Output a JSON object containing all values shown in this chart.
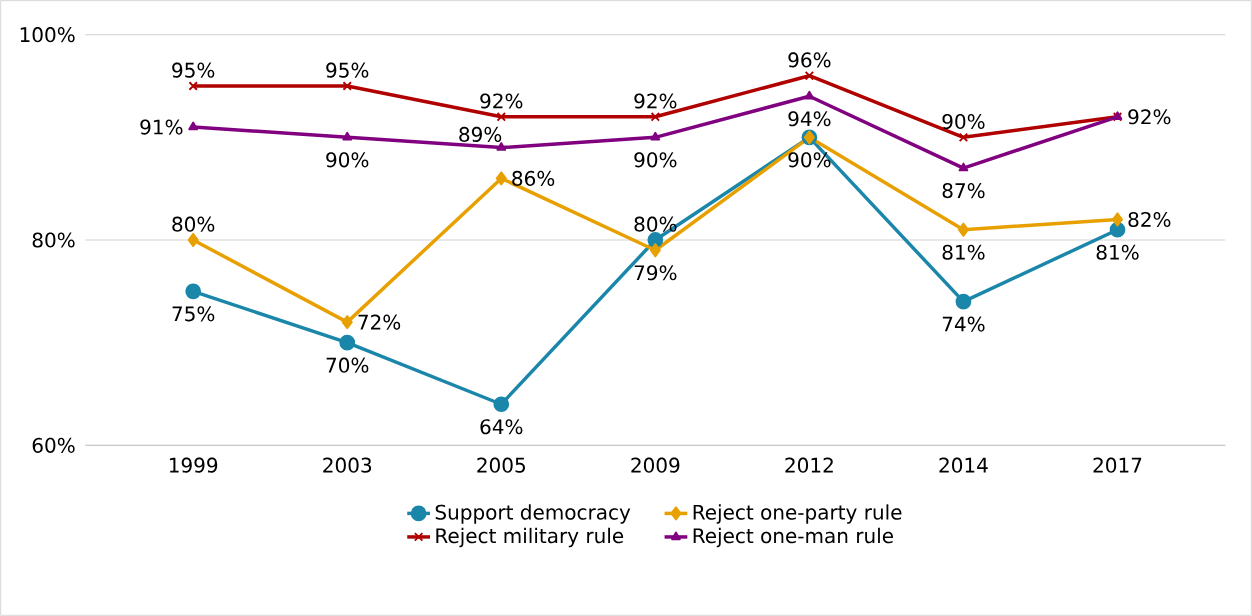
{
  "chart_data": {
    "type": "line",
    "categories": [
      "1999",
      "2003",
      "2005",
      "2009",
      "2012",
      "2014",
      "2017"
    ],
    "series": [
      {
        "name": "Support democracy",
        "color": "#1a87aa",
        "marker": "circle",
        "values": [
          75,
          70,
          64,
          80,
          90,
          74,
          81
        ],
        "value_labels": [
          "75%",
          "70%",
          "64%",
          "80%",
          null,
          "74%",
          "81%"
        ]
      },
      {
        "name": "Reject one-party rule",
        "color": "#e8a000",
        "marker": "diamond",
        "values": [
          80,
          72,
          86,
          79,
          90,
          81,
          82
        ],
        "value_labels": [
          "80%",
          "72%",
          "86%",
          "79%",
          "90%",
          "81%",
          "82%"
        ]
      },
      {
        "name": "Reject military rule",
        "color": "#b00000",
        "marker": "cross",
        "values": [
          95,
          95,
          92,
          92,
          96,
          90,
          92
        ],
        "value_labels": [
          "95%",
          "95%",
          "92%",
          "92%",
          "96%",
          "90%",
          null
        ]
      },
      {
        "name": "Reject one-man rule",
        "color": "#800080",
        "marker": "triangle",
        "values": [
          91,
          90,
          89,
          90,
          94,
          87,
          92
        ],
        "value_labels": [
          "91%",
          "90%",
          "89%",
          "90%",
          "94%",
          "87%",
          "92%"
        ]
      }
    ],
    "ylim": [
      60,
      100
    ],
    "yticks": [
      {
        "value": 60,
        "label": "60%"
      },
      {
        "value": 80,
        "label": "80%"
      },
      {
        "value": 100,
        "label": "100%"
      }
    ],
    "grid": "y",
    "legend": "bottom",
    "line_style": "solid"
  }
}
